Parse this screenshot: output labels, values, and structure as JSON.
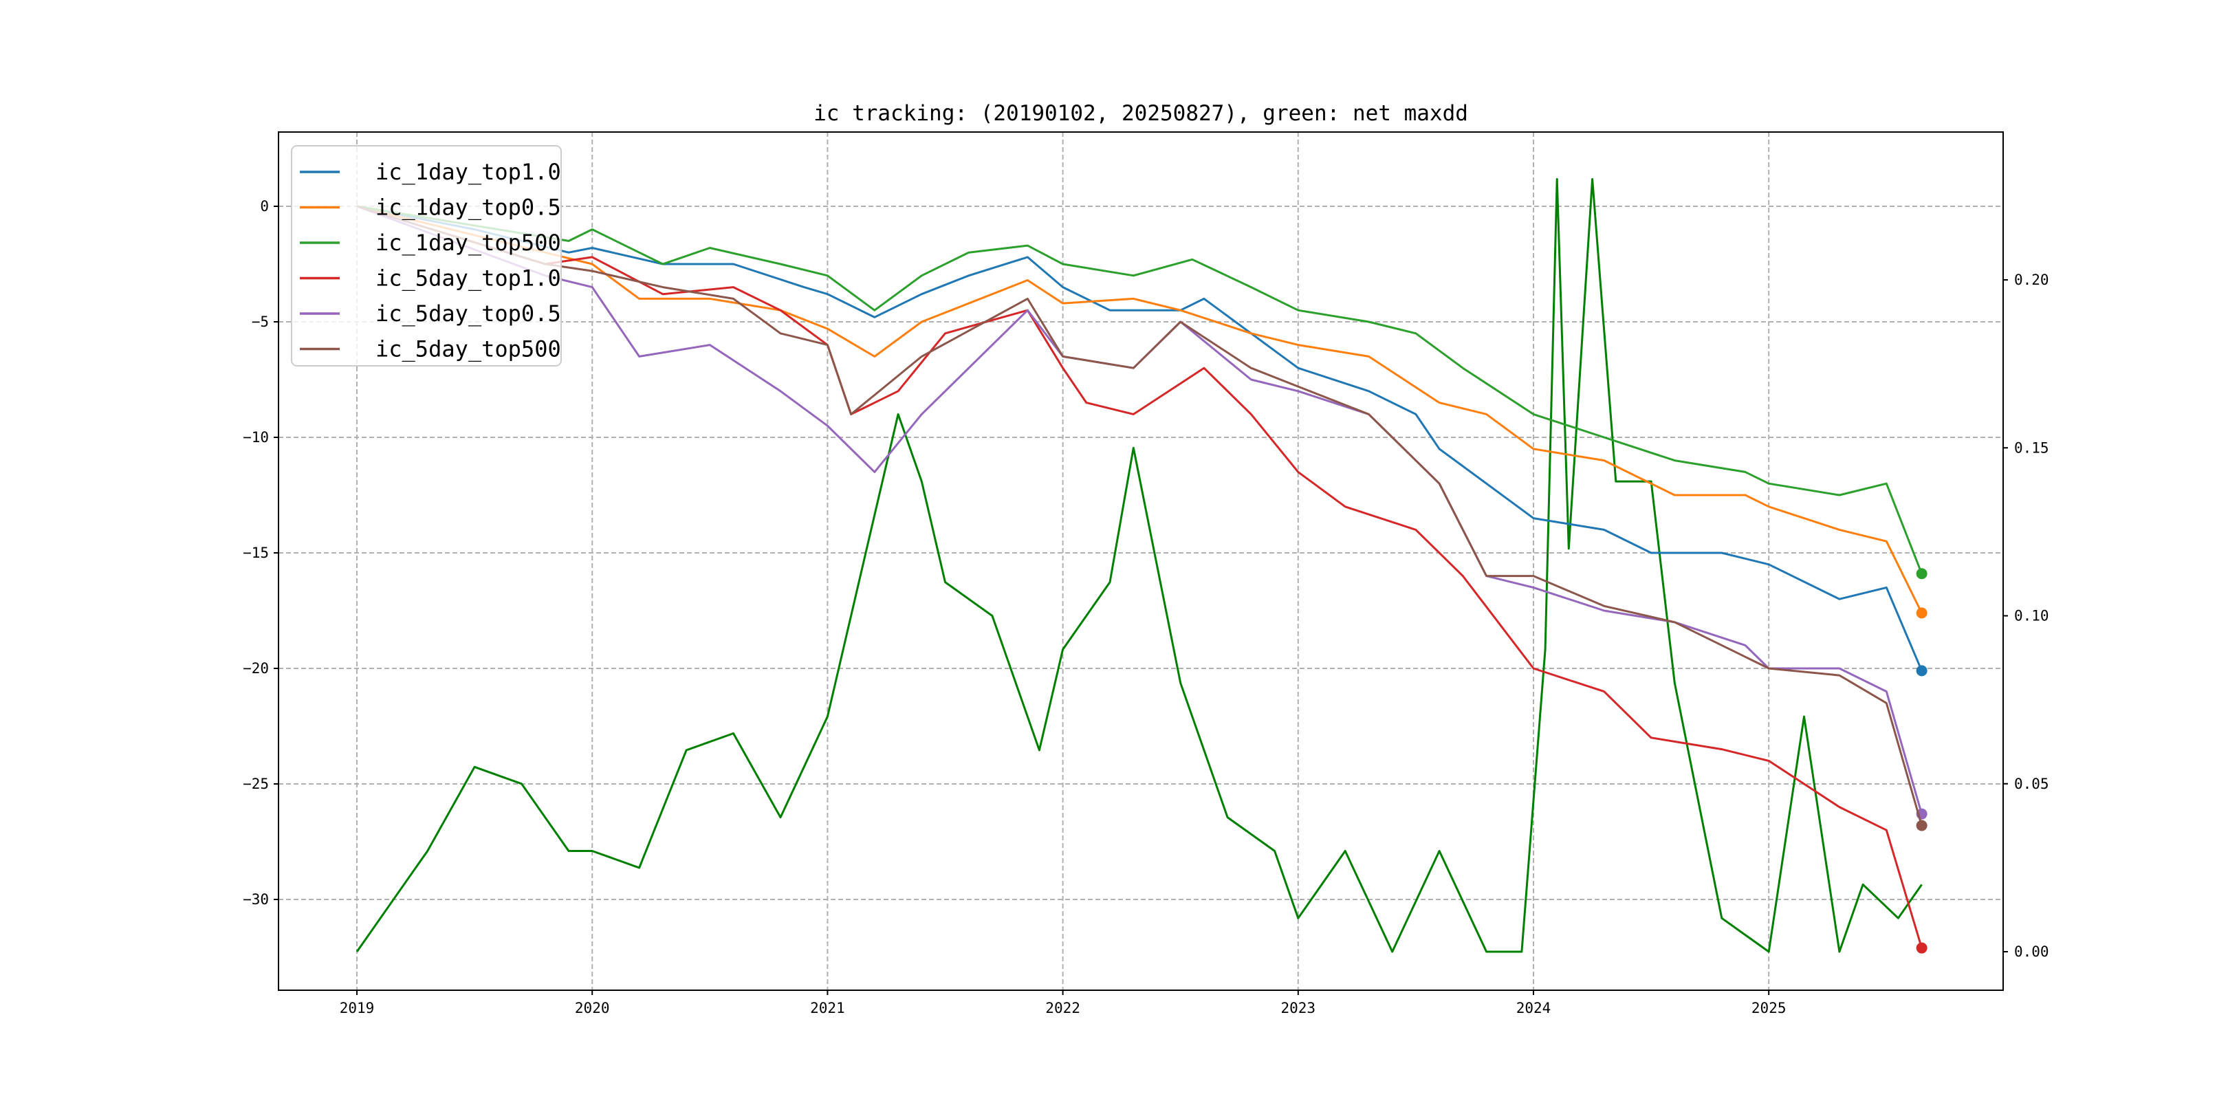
{
  "chart_data": {
    "type": "line",
    "title": "ic tracking: (20190102, 20250827), green: net maxdd",
    "xlabel": "",
    "ylabel": "",
    "xlim": [
      2018.65,
      2025.95
    ],
    "ylim": [
      -33.3,
      2.8
    ],
    "y2lim": [
      -0.012,
      0.245
    ],
    "x_ticks": [
      2019,
      2020,
      2021,
      2022,
      2023,
      2024,
      2025
    ],
    "x_tick_labels": [
      "2019",
      "2020",
      "2021",
      "2022",
      "2023",
      "2024",
      "2025"
    ],
    "y_ticks": [
      0,
      -5,
      -10,
      -15,
      -20,
      -25,
      -30
    ],
    "y_tick_labels": [
      "0",
      "−5",
      "−10",
      "−15",
      "−20",
      "−25",
      "−30"
    ],
    "y2_ticks": [
      0,
      0.05,
      0.1,
      0.15,
      0.2
    ],
    "y2_tick_labels": [
      "0.00",
      "0.05",
      "0.10",
      "0.15",
      "0.20"
    ],
    "grid": true,
    "legend_position": "top-left",
    "series": [
      {
        "name": "ic_1day_top1.0",
        "color": "#1f77b4",
        "axis": "left",
        "x": [
          2019,
          2019.5,
          2019.9,
          2020,
          2020.3,
          2020.6,
          2020.9,
          2021,
          2021.2,
          2021.4,
          2021.6,
          2021.85,
          2022,
          2022.2,
          2022.5,
          2022.6,
          2022.8,
          2023,
          2023.3,
          2023.5,
          2023.6,
          2023.8,
          2024,
          2024.3,
          2024.5,
          2024.8,
          2025,
          2025.3,
          2025.5,
          2025.65
        ],
        "y": [
          0,
          -1,
          -2,
          -1.8,
          -2.5,
          -2.5,
          -3.5,
          -3.8,
          -4.8,
          -3.8,
          -3,
          -2.2,
          -3.5,
          -4.5,
          -4.5,
          -4,
          -5.5,
          -7,
          -8,
          -9,
          -10.5,
          -12,
          -13.5,
          -14,
          -15,
          -15,
          -15.5,
          -17,
          -16.5,
          -20.1
        ]
      },
      {
        "name": "ic_1day_top0.5",
        "color": "#ff7f0e",
        "axis": "left",
        "x": [
          2019,
          2019.8,
          2020,
          2020.2,
          2020.5,
          2020.8,
          2021,
          2021.2,
          2021.4,
          2021.85,
          2022,
          2022.3,
          2022.5,
          2022.8,
          2023,
          2023.3,
          2023.6,
          2023.8,
          2024,
          2024.3,
          2024.6,
          2024.9,
          2025,
          2025.3,
          2025.5,
          2025.65
        ],
        "y": [
          0,
          -2,
          -2.5,
          -4,
          -4,
          -4.5,
          -5.3,
          -6.5,
          -5,
          -3.2,
          -4.2,
          -4,
          -4.5,
          -5.5,
          -6,
          -6.5,
          -8.5,
          -9,
          -10.5,
          -11,
          -12.5,
          -12.5,
          -13,
          -14,
          -14.5,
          -17.6
        ]
      },
      {
        "name": "ic_1day_top500",
        "color": "#2ca02c",
        "axis": "left",
        "x": [
          2019,
          2019.9,
          2020,
          2020.3,
          2020.5,
          2020.8,
          2021,
          2021.2,
          2021.4,
          2021.6,
          2021.85,
          2022,
          2022.3,
          2022.55,
          2022.8,
          2023,
          2023.3,
          2023.5,
          2023.7,
          2024,
          2024.3,
          2024.6,
          2024.9,
          2025,
          2025.3,
          2025.5,
          2025.65
        ],
        "y": [
          0,
          -1.5,
          -1,
          -2.5,
          -1.8,
          -2.5,
          -3,
          -4.5,
          -3,
          -2,
          -1.7,
          -2.5,
          -3,
          -2.3,
          -3.5,
          -4.5,
          -5,
          -5.5,
          -7,
          -9,
          -10,
          -11,
          -11.5,
          -12,
          -12.5,
          -12,
          -15.9
        ]
      },
      {
        "name": "ic_5day_top1.0",
        "color": "#d62728",
        "axis": "left",
        "x": [
          2019,
          2019.8,
          2020,
          2020.3,
          2020.6,
          2020.8,
          2021,
          2021.1,
          2021.3,
          2021.5,
          2021.85,
          2022,
          2022.1,
          2022.3,
          2022.6,
          2022.8,
          2023,
          2023.2,
          2023.5,
          2023.7,
          2024,
          2024.3,
          2024.5,
          2024.8,
          2025,
          2025.3,
          2025.5,
          2025.65
        ],
        "y": [
          0,
          -2.5,
          -2.2,
          -3.8,
          -3.5,
          -4.5,
          -6,
          -9,
          -8,
          -5.5,
          -4.5,
          -7,
          -8.5,
          -9,
          -7,
          -9,
          -11.5,
          -13,
          -14,
          -16,
          -20,
          -21,
          -23,
          -23.5,
          -24,
          -26,
          -27,
          -32.1
        ]
      },
      {
        "name": "ic_5day_top0.5",
        "color": "#9467bd",
        "axis": "left",
        "x": [
          2019,
          2019.8,
          2020,
          2020.2,
          2020.5,
          2020.8,
          2021,
          2021.2,
          2021.4,
          2021.85,
          2022,
          2022.3,
          2022.5,
          2022.8,
          2023,
          2023.3,
          2023.6,
          2023.8,
          2024,
          2024.3,
          2024.6,
          2024.9,
          2025,
          2025.3,
          2025.5,
          2025.65
        ],
        "y": [
          0,
          -3,
          -3.5,
          -6.5,
          -6,
          -8,
          -9.5,
          -11.5,
          -9,
          -4.5,
          -6.5,
          -7,
          -5,
          -7.5,
          -8,
          -9,
          -12,
          -16,
          -16.5,
          -17.5,
          -18,
          -19,
          -20,
          -20,
          -21,
          -26.3
        ]
      },
      {
        "name": "ic_5day_top500",
        "color": "#8c564b",
        "axis": "left",
        "x": [
          2019,
          2019.8,
          2020,
          2020.3,
          2020.6,
          2020.8,
          2021,
          2021.1,
          2021.4,
          2021.85,
          2022,
          2022.3,
          2022.5,
          2022.8,
          2023,
          2023.3,
          2023.6,
          2023.8,
          2024,
          2024.3,
          2024.6,
          2024.9,
          2025,
          2025.3,
          2025.5,
          2025.65
        ],
        "y": [
          0,
          -2.5,
          -2.8,
          -3.5,
          -4,
          -5.5,
          -6,
          -9,
          -6.5,
          -4,
          -6.5,
          -7,
          -5,
          -7,
          -7.8,
          -9,
          -12,
          -16,
          -16,
          -17.3,
          -18,
          -19.5,
          -20,
          -20.3,
          -21.5,
          -26.8
        ]
      },
      {
        "name": "net maxdd",
        "color": "#008000",
        "axis": "right",
        "in_legend": false,
        "x": [
          2019,
          2019.1,
          2019.2,
          2019.3,
          2019.5,
          2019.7,
          2019.9,
          2020,
          2020.2,
          2020.4,
          2020.6,
          2020.8,
          2021,
          2021.2,
          2021.3,
          2021.4,
          2021.5,
          2021.7,
          2021.9,
          2022,
          2022.2,
          2022.3,
          2022.5,
          2022.7,
          2022.9,
          2023,
          2023.2,
          2023.4,
          2023.6,
          2023.8,
          2023.95,
          2024.05,
          2024.1,
          2024.15,
          2024.25,
          2024.35,
          2024.5,
          2024.6,
          2024.8,
          2025,
          2025.15,
          2025.3,
          2025.4,
          2025.55,
          2025.65
        ],
        "y": [
          0,
          0.01,
          0.02,
          0.03,
          0.055,
          0.05,
          0.03,
          0.03,
          0.025,
          0.06,
          0.065,
          0.04,
          0.07,
          0.13,
          0.16,
          0.14,
          0.11,
          0.1,
          0.06,
          0.09,
          0.11,
          0.15,
          0.08,
          0.04,
          0.03,
          0.01,
          0.03,
          0.0,
          0.03,
          0.0,
          0.0,
          0.09,
          0.23,
          0.12,
          0.23,
          0.14,
          0.14,
          0.08,
          0.01,
          0.0,
          0.07,
          0.0,
          0.02,
          0.01,
          0.02
        ]
      }
    ]
  }
}
